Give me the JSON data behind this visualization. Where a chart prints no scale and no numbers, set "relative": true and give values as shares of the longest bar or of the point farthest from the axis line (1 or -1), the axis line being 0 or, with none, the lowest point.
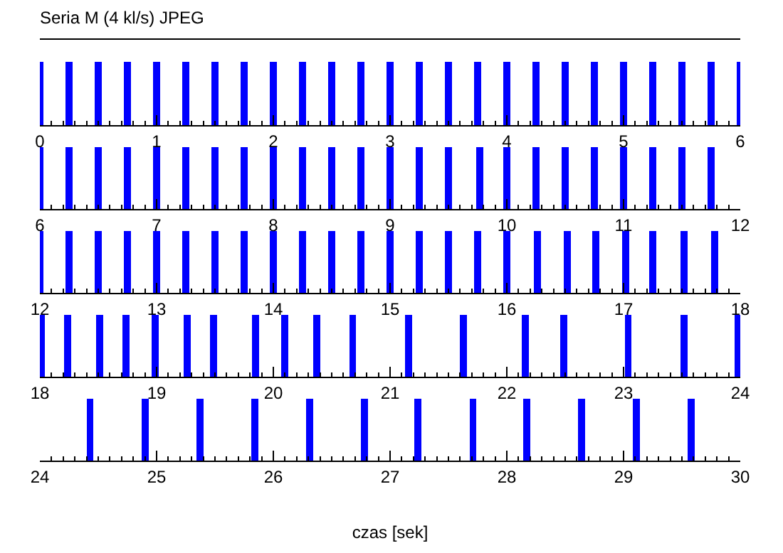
{
  "chart_data": [
    {
      "type": "bar",
      "title": "Seria M (4 kl/s) JPEG",
      "relative": true,
      "color": "#0000ff",
      "xlim": [
        0,
        6
      ],
      "xticks": [
        0,
        1,
        2,
        3,
        4,
        5,
        6
      ],
      "x": [
        0,
        0.25,
        0.5,
        0.75,
        1,
        1.25,
        1.5,
        1.75,
        2,
        2.25,
        2.5,
        2.75,
        3,
        3.25,
        3.5,
        3.75,
        4,
        4.25,
        4.5,
        4.75,
        5,
        5.25,
        5.5,
        5.75,
        6
      ],
      "values": [
        1,
        1,
        1,
        1,
        1,
        1,
        1,
        1,
        1,
        1,
        1,
        1,
        1,
        1,
        1,
        1,
        1,
        1,
        1,
        1,
        1,
        1,
        1,
        1,
        1
      ]
    },
    {
      "type": "bar",
      "relative": true,
      "color": "#0000ff",
      "xlim": [
        6,
        12
      ],
      "xticks": [
        6,
        7,
        8,
        9,
        10,
        11,
        12
      ],
      "x": [
        6,
        6.25,
        6.5,
        6.75,
        7,
        7.25,
        7.5,
        7.75,
        8,
        8.25,
        8.5,
        8.75,
        9,
        9.25,
        9.5,
        9.77,
        10,
        10.25,
        10.5,
        10.75,
        11,
        11.25,
        11.5,
        11.75
      ],
      "values": [
        1,
        1,
        1,
        1,
        1,
        1,
        1,
        1,
        1,
        1,
        1,
        1,
        1,
        1,
        1,
        1,
        1,
        1,
        1,
        1,
        1,
        1,
        1,
        1
      ]
    },
    {
      "type": "bar",
      "relative": true,
      "color": "#0000ff",
      "xlim": [
        12,
        18
      ],
      "xticks": [
        12,
        13,
        14,
        15,
        16,
        17,
        18
      ],
      "x": [
        12,
        12.25,
        12.5,
        12.75,
        13,
        13.25,
        13.5,
        13.75,
        14,
        14.25,
        14.5,
        14.75,
        15,
        15.25,
        15.5,
        15.75,
        16,
        16.26,
        16.52,
        16.76,
        17.02,
        17.25,
        17.52,
        17.78
      ],
      "values": [
        1,
        1,
        1,
        1,
        1,
        1,
        1,
        1,
        1,
        1,
        1,
        1,
        1,
        1,
        1,
        1,
        1,
        1,
        1,
        1,
        1,
        1,
        1,
        1
      ]
    },
    {
      "type": "bar",
      "relative": true,
      "color": "#0000ff",
      "xlim": [
        18,
        24
      ],
      "xticks": [
        18,
        19,
        20,
        21,
        22,
        23,
        24
      ],
      "x": [
        18.01,
        18.24,
        18.51,
        18.74,
        18.99,
        19.26,
        19.49,
        19.85,
        20.1,
        20.37,
        20.68,
        21.16,
        21.63,
        22.16,
        22.49,
        23.04,
        23.52,
        23.98
      ],
      "values": [
        1,
        1,
        1,
        1,
        1,
        1,
        1,
        1,
        1,
        1,
        1,
        1,
        1,
        1,
        1,
        1,
        1,
        1
      ]
    },
    {
      "type": "bar",
      "relative": true,
      "color": "#0000ff",
      "xlim": [
        24,
        30
      ],
      "xticks": [
        24,
        25,
        26,
        27,
        28,
        29,
        30
      ],
      "xlabel": "czas [sek]",
      "x": [
        24.43,
        24.9,
        25.37,
        25.84,
        26.31,
        26.78,
        27.24,
        27.71,
        28.17,
        28.64,
        29.11,
        29.58
      ],
      "values": [
        1,
        1,
        1,
        1,
        1,
        1,
        1,
        1,
        1,
        1,
        1,
        1
      ]
    }
  ]
}
